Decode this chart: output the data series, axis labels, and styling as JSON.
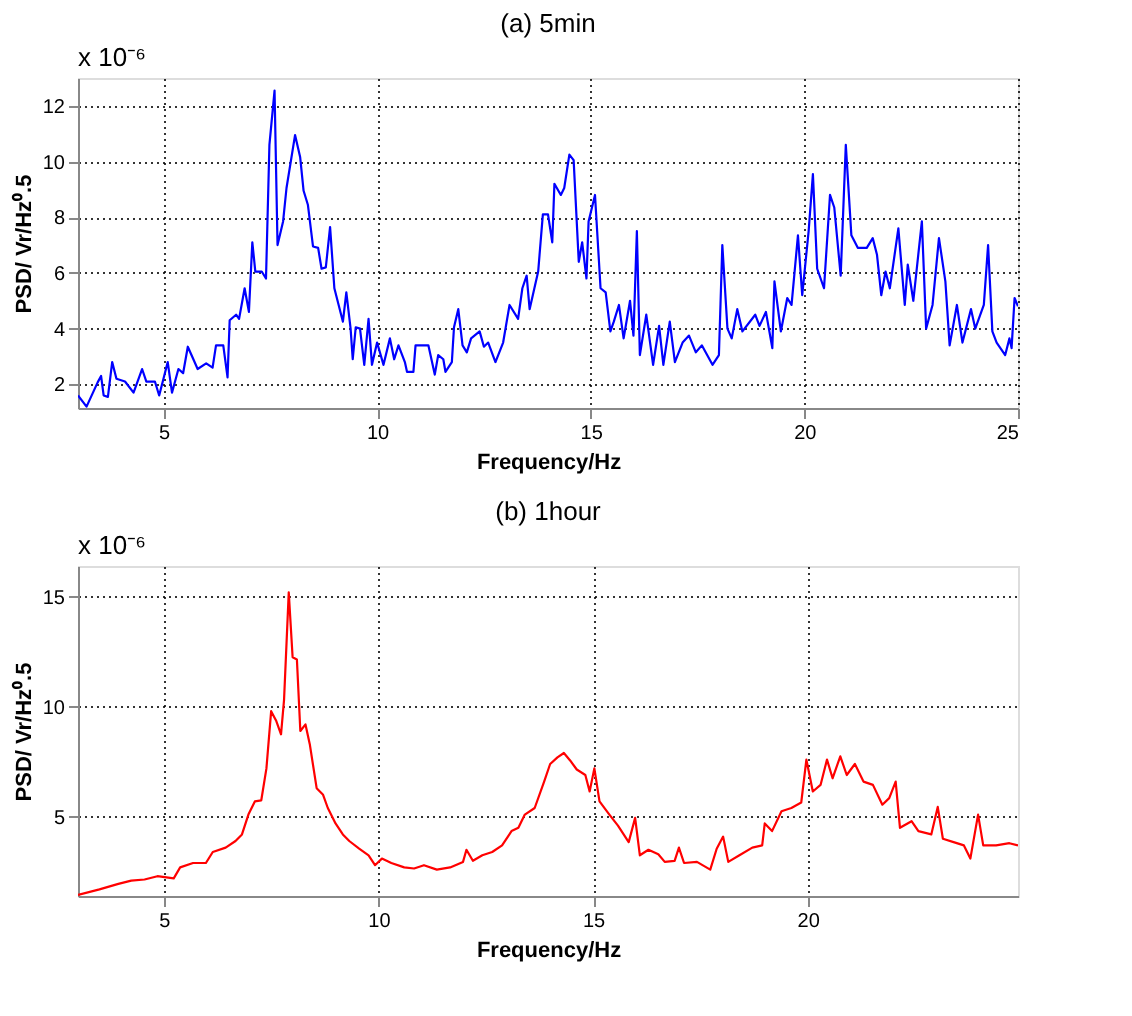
{
  "chart_data": [
    {
      "type": "line",
      "title": "(a) 5min",
      "xlabel": "Frequency/Hz",
      "ylabel": "PSD/ Vr/Hz⁰.5",
      "annotations": [
        "x 10⁻⁶"
      ],
      "x": [
        3.0,
        3.2,
        3.46,
        3.54,
        3.6,
        3.7,
        3.8,
        3.9,
        4.1,
        4.3,
        4.5,
        4.6,
        4.8,
        4.9,
        5.1,
        5.2,
        5.35,
        5.46,
        5.57,
        5.7,
        5.8,
        6.0,
        6.15,
        6.23,
        6.4,
        6.5,
        6.55,
        6.7,
        6.77,
        6.9,
        7.0,
        7.08,
        7.15,
        7.3,
        7.4,
        7.48,
        7.6,
        7.67,
        7.8,
        7.88,
        8.08,
        8.2,
        8.28,
        8.38,
        8.5,
        8.62,
        8.7,
        8.8,
        8.9,
        9.0,
        9.2,
        9.28,
        9.38,
        9.43,
        9.5,
        9.6,
        9.7,
        9.8,
        9.88,
        10.0,
        10.15,
        10.3,
        10.4,
        10.5,
        10.65,
        10.7,
        10.85,
        10.9,
        11.2,
        11.35,
        11.43,
        11.55,
        11.6,
        11.75,
        11.8,
        11.9,
        12.0,
        12.1,
        12.2,
        12.4,
        12.5,
        12.6,
        12.77,
        12.95,
        13.1,
        13.3,
        13.4,
        13.5,
        13.57,
        13.77,
        13.88,
        14.0,
        14.1,
        14.15,
        14.3,
        14.38,
        14.5,
        14.6,
        14.72,
        14.8,
        14.9,
        14.95,
        15.1,
        15.23,
        15.35,
        15.46,
        15.54,
        15.66,
        15.77,
        15.92,
        16.0,
        16.08,
        16.15,
        16.3,
        16.46,
        16.6,
        16.7,
        16.85,
        16.97,
        17.15,
        17.3,
        17.46,
        17.6,
        17.85,
        18.0,
        18.08,
        18.2,
        18.3,
        18.43,
        18.55,
        18.85,
        18.95,
        19.1,
        19.25,
        19.3,
        19.45,
        19.6,
        19.7,
        19.85,
        19.95,
        20.1,
        20.2,
        20.3,
        20.46,
        20.6,
        20.7,
        20.85,
        20.97,
        21.1,
        21.25,
        21.46,
        21.6,
        21.7,
        21.8,
        21.9,
        22.0,
        22.2,
        22.35,
        22.42,
        22.55,
        22.75,
        22.85,
        23.0,
        23.15,
        23.3,
        23.4,
        23.57,
        23.7,
        23.9,
        24.0,
        24.2,
        24.3,
        24.4,
        24.5,
        24.7,
        24.8,
        24.85,
        24.92,
        25.0
      ],
      "series": [
        {
          "color": "#0000ff",
          "values": [
            1.6,
            1.2,
            2.07,
            2.3,
            1.6,
            1.55,
            2.8,
            2.2,
            2.1,
            1.7,
            2.55,
            2.1,
            2.1,
            1.6,
            2.8,
            1.7,
            2.55,
            2.4,
            3.35,
            2.9,
            2.55,
            2.75,
            2.6,
            3.4,
            3.4,
            2.25,
            4.3,
            4.5,
            4.35,
            5.45,
            4.6,
            7.1,
            6.05,
            6.05,
            5.8,
            10.6,
            12.55,
            7.0,
            7.85,
            9.05,
            10.95,
            10.15,
            8.95,
            8.45,
            6.95,
            6.9,
            6.15,
            6.2,
            7.65,
            5.45,
            4.25,
            5.3,
            4.0,
            2.9,
            4.05,
            4.0,
            2.7,
            4.35,
            2.7,
            3.5,
            2.7,
            3.65,
            2.9,
            3.4,
            2.8,
            2.45,
            2.45,
            3.4,
            3.4,
            2.35,
            3.05,
            2.9,
            2.45,
            2.8,
            4.05,
            4.7,
            3.4,
            3.15,
            3.65,
            3.9,
            3.35,
            3.5,
            2.8,
            3.5,
            4.85,
            4.35,
            5.45,
            5.9,
            4.7,
            6.05,
            8.1,
            8.1,
            7.1,
            9.2,
            8.8,
            9.05,
            10.25,
            10.05,
            6.4,
            7.1,
            5.8,
            7.85,
            8.8,
            5.45,
            5.3,
            3.9,
            4.25,
            4.85,
            3.65,
            5.0,
            3.75,
            7.5,
            3.05,
            4.5,
            2.7,
            4.1,
            2.7,
            4.25,
            2.8,
            3.5,
            3.75,
            3.15,
            3.4,
            2.7,
            3.05,
            7.0,
            4.0,
            3.65,
            4.7,
            3.9,
            4.5,
            4.1,
            4.6,
            3.3,
            5.7,
            3.9,
            5.1,
            4.85,
            7.35,
            5.2,
            7.5,
            9.55,
            6.15,
            5.45,
            8.8,
            8.35,
            5.9,
            10.6,
            7.35,
            6.9,
            6.9,
            7.25,
            6.65,
            5.2,
            6.05,
            5.45,
            7.6,
            4.85,
            6.3,
            5.0,
            7.85,
            4.0,
            4.85,
            7.25,
            5.7,
            3.4,
            4.85,
            3.5,
            4.7,
            4.0,
            4.85,
            7.0,
            3.9,
            3.5,
            3.05,
            3.65,
            3.3,
            5.1,
            4.8
          ]
        }
      ],
      "xlim": [
        3,
        25
      ],
      "ylim": [
        1.15,
        13
      ],
      "xticks": [
        5,
        10,
        15,
        20,
        25
      ],
      "yticks": [
        2,
        4,
        6,
        8,
        10,
        12
      ],
      "grid": true
    },
    {
      "type": "line",
      "title": "(b) 1hour",
      "xlabel": "Frequency/Hz",
      "ylabel": "PSD/ Vr/Hz⁰.5",
      "annotations": [
        "x 10⁻⁶"
      ],
      "x": [
        3.0,
        3.5,
        3.94,
        4.24,
        4.55,
        4.85,
        5.23,
        5.38,
        5.68,
        5.98,
        6.14,
        6.44,
        6.67,
        6.82,
        6.97,
        7.12,
        7.27,
        7.39,
        7.5,
        7.62,
        7.73,
        7.8,
        7.91,
        8.0,
        8.1,
        8.18,
        8.3,
        8.4,
        8.56,
        8.71,
        8.82,
        9.0,
        9.17,
        9.32,
        9.55,
        9.77,
        9.92,
        10.08,
        10.3,
        10.6,
        10.83,
        11.06,
        11.36,
        11.67,
        11.97,
        12.05,
        12.2,
        12.42,
        12.65,
        12.88,
        13.1,
        13.26,
        13.41,
        13.64,
        13.86,
        14.0,
        14.17,
        14.32,
        14.47,
        14.62,
        14.82,
        14.92,
        15.03,
        15.15,
        15.38,
        15.58,
        15.83,
        15.98,
        16.09,
        16.29,
        16.52,
        16.67,
        16.9,
        17.0,
        17.12,
        17.42,
        17.73,
        17.88,
        18.03,
        18.15,
        18.41,
        18.71,
        18.94,
        19.0,
        19.17,
        19.39,
        19.62,
        19.85,
        19.97,
        20.12,
        20.3,
        20.45,
        20.58,
        20.76,
        20.91,
        21.1,
        21.3,
        21.52,
        21.74,
        21.9,
        22.05,
        22.15,
        22.42,
        22.58,
        22.88,
        23.03,
        23.15,
        23.4,
        23.64,
        23.79,
        23.97,
        24.09,
        24.39,
        24.7,
        24.9
      ],
      "series": [
        {
          "color": "#ff0000",
          "values": [
            1.45,
            1.7,
            1.95,
            2.1,
            2.15,
            2.3,
            2.2,
            2.7,
            2.9,
            2.9,
            3.4,
            3.6,
            3.9,
            4.2,
            5.1,
            5.7,
            5.75,
            7.2,
            9.8,
            9.35,
            8.75,
            10.3,
            15.2,
            12.25,
            12.15,
            8.9,
            9.2,
            8.3,
            6.3,
            6.0,
            5.4,
            4.7,
            4.2,
            3.9,
            3.55,
            3.25,
            2.8,
            3.1,
            2.9,
            2.7,
            2.65,
            2.8,
            2.6,
            2.7,
            2.95,
            3.5,
            3.0,
            3.25,
            3.4,
            3.7,
            4.35,
            4.5,
            5.1,
            5.4,
            6.6,
            7.4,
            7.7,
            7.9,
            7.55,
            7.15,
            6.9,
            6.15,
            7.2,
            5.7,
            5.1,
            4.6,
            3.85,
            4.95,
            3.25,
            3.5,
            3.3,
            2.95,
            3.0,
            3.6,
            2.9,
            2.95,
            2.6,
            3.55,
            4.1,
            2.95,
            3.25,
            3.6,
            3.7,
            4.7,
            4.35,
            5.25,
            5.4,
            5.65,
            7.6,
            6.15,
            6.45,
            7.6,
            6.75,
            7.75,
            6.9,
            7.4,
            6.6,
            6.45,
            5.55,
            5.85,
            6.6,
            4.5,
            4.8,
            4.35,
            4.2,
            5.45,
            4.0,
            3.85,
            3.7,
            3.1,
            5.1,
            3.7,
            3.7,
            3.8,
            3.7
          ]
        }
      ],
      "xlim": [
        3,
        24.9
      ],
      "ylim": [
        1.4,
        16.4
      ],
      "xticks": [
        5,
        10,
        15,
        20
      ],
      "yticks": [
        5,
        10,
        15
      ],
      "grid": true
    }
  ]
}
